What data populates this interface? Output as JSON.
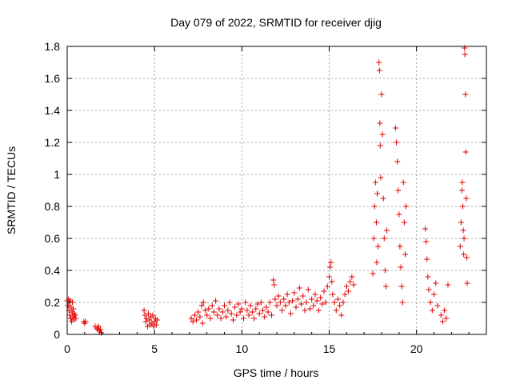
{
  "chart_data": {
    "type": "scatter",
    "title": "Day 079 of 2022, SRMTID for receiver djig",
    "xlabel": "GPS time / hours",
    "ylabel": "SRMTID / TECUs",
    "xlim": [
      0,
      24
    ],
    "ylim": [
      0,
      1.8
    ],
    "xticks": [
      0,
      5,
      10,
      15,
      20
    ],
    "xtick_labels": [
      "0",
      "5",
      "10",
      "15",
      "20"
    ],
    "yticks": [
      0,
      0.2,
      0.4,
      0.6,
      0.8,
      1.0,
      1.2,
      1.4,
      1.6,
      1.8
    ],
    "ytick_labels": [
      "0",
      "0.2",
      "0.4",
      "0.6",
      "0.8",
      "1",
      "1.2",
      "1.4",
      "1.6",
      "1.8"
    ],
    "grid": true,
    "marker": "plus",
    "color": "#e00000",
    "series": [
      {
        "name": "SRMTID",
        "points": [
          [
            0.0,
            0.21
          ],
          [
            0.05,
            0.18
          ],
          [
            0.08,
            0.22
          ],
          [
            0.1,
            0.15
          ],
          [
            0.12,
            0.2
          ],
          [
            0.15,
            0.12
          ],
          [
            0.18,
            0.21
          ],
          [
            0.2,
            0.1
          ],
          [
            0.22,
            0.17
          ],
          [
            0.25,
            0.08
          ],
          [
            0.28,
            0.14
          ],
          [
            0.3,
            0.2
          ],
          [
            0.32,
            0.11
          ],
          [
            0.35,
            0.16
          ],
          [
            0.38,
            0.09
          ],
          [
            0.4,
            0.13
          ],
          [
            0.45,
            0.12
          ],
          [
            0.5,
            0.1
          ],
          [
            0.95,
            0.08
          ],
          [
            1.0,
            0.07
          ],
          [
            1.05,
            0.08
          ],
          [
            1.6,
            0.05
          ],
          [
            1.7,
            0.04
          ],
          [
            1.75,
            0.03
          ],
          [
            1.8,
            0.05
          ],
          [
            1.85,
            0.02
          ],
          [
            1.9,
            0.03
          ],
          [
            1.95,
            0.01
          ],
          [
            4.4,
            0.15
          ],
          [
            4.45,
            0.12
          ],
          [
            4.5,
            0.08
          ],
          [
            4.55,
            0.1
          ],
          [
            4.6,
            0.05
          ],
          [
            4.65,
            0.13
          ],
          [
            4.7,
            0.09
          ],
          [
            4.75,
            0.06
          ],
          [
            4.8,
            0.11
          ],
          [
            4.85,
            0.07
          ],
          [
            4.9,
            0.12
          ],
          [
            4.95,
            0.05
          ],
          [
            5.0,
            0.08
          ],
          [
            5.05,
            0.1
          ],
          [
            5.1,
            0.06
          ],
          [
            5.15,
            0.09
          ],
          [
            7.1,
            0.1
          ],
          [
            7.2,
            0.08
          ],
          [
            7.3,
            0.12
          ],
          [
            7.4,
            0.09
          ],
          [
            7.5,
            0.14
          ],
          [
            7.6,
            0.11
          ],
          [
            7.7,
            0.18
          ],
          [
            7.75,
            0.07
          ],
          [
            7.8,
            0.2
          ],
          [
            7.9,
            0.15
          ],
          [
            8.0,
            0.12
          ],
          [
            8.1,
            0.16
          ],
          [
            8.2,
            0.1
          ],
          [
            8.3,
            0.18
          ],
          [
            8.4,
            0.14
          ],
          [
            8.5,
            0.21
          ],
          [
            8.6,
            0.12
          ],
          [
            8.7,
            0.16
          ],
          [
            8.8,
            0.1
          ],
          [
            8.9,
            0.14
          ],
          [
            9.0,
            0.18
          ],
          [
            9.1,
            0.11
          ],
          [
            9.2,
            0.15
          ],
          [
            9.3,
            0.2
          ],
          [
            9.4,
            0.13
          ],
          [
            9.5,
            0.09
          ],
          [
            9.6,
            0.17
          ],
          [
            9.7,
            0.12
          ],
          [
            9.8,
            0.19
          ],
          [
            9.9,
            0.14
          ],
          [
            10.0,
            0.16
          ],
          [
            10.1,
            0.1
          ],
          [
            10.2,
            0.2
          ],
          [
            10.3,
            0.15
          ],
          [
            10.4,
            0.12
          ],
          [
            10.5,
            0.18
          ],
          [
            10.6,
            0.14
          ],
          [
            10.7,
            0.1
          ],
          [
            10.8,
            0.16
          ],
          [
            10.9,
            0.19
          ],
          [
            11.0,
            0.13
          ],
          [
            11.1,
            0.2
          ],
          [
            11.2,
            0.15
          ],
          [
            11.3,
            0.11
          ],
          [
            11.4,
            0.17
          ],
          [
            11.5,
            0.14
          ],
          [
            11.6,
            0.2
          ],
          [
            11.7,
            0.12
          ],
          [
            11.8,
            0.34
          ],
          [
            11.85,
            0.31
          ],
          [
            11.9,
            0.22
          ],
          [
            12.0,
            0.18
          ],
          [
            12.1,
            0.24
          ],
          [
            12.2,
            0.2
          ],
          [
            12.3,
            0.15
          ],
          [
            12.4,
            0.22
          ],
          [
            12.5,
            0.18
          ],
          [
            12.6,
            0.25
          ],
          [
            12.7,
            0.2
          ],
          [
            12.8,
            0.13
          ],
          [
            12.9,
            0.21
          ],
          [
            13.0,
            0.26
          ],
          [
            13.1,
            0.17
          ],
          [
            13.2,
            0.22
          ],
          [
            13.3,
            0.29
          ],
          [
            13.4,
            0.19
          ],
          [
            13.5,
            0.24
          ],
          [
            13.6,
            0.15
          ],
          [
            13.7,
            0.2
          ],
          [
            13.8,
            0.28
          ],
          [
            13.9,
            0.16
          ],
          [
            14.0,
            0.22
          ],
          [
            14.1,
            0.18
          ],
          [
            14.2,
            0.25
          ],
          [
            14.3,
            0.21
          ],
          [
            14.4,
            0.15
          ],
          [
            14.5,
            0.23
          ],
          [
            14.6,
            0.19
          ],
          [
            14.7,
            0.27
          ],
          [
            14.8,
            0.2
          ],
          [
            14.9,
            0.3
          ],
          [
            15.0,
            0.36
          ],
          [
            15.05,
            0.42
          ],
          [
            15.1,
            0.45
          ],
          [
            15.15,
            0.33
          ],
          [
            15.2,
            0.25
          ],
          [
            15.3,
            0.2
          ],
          [
            15.4,
            0.15
          ],
          [
            15.5,
            0.22
          ],
          [
            15.6,
            0.18
          ],
          [
            15.7,
            0.12
          ],
          [
            15.8,
            0.2
          ],
          [
            15.9,
            0.25
          ],
          [
            16.0,
            0.3
          ],
          [
            16.1,
            0.27
          ],
          [
            16.2,
            0.33
          ],
          [
            16.3,
            0.36
          ],
          [
            16.4,
            0.31
          ],
          [
            17.5,
            0.38
          ],
          [
            17.55,
            0.6
          ],
          [
            17.6,
            0.8
          ],
          [
            17.65,
            0.95
          ],
          [
            17.7,
            0.7
          ],
          [
            17.72,
            0.45
          ],
          [
            17.75,
            0.88
          ],
          [
            17.8,
            0.55
          ],
          [
            17.85,
            1.7
          ],
          [
            17.88,
            1.65
          ],
          [
            17.9,
            1.32
          ],
          [
            17.92,
            1.18
          ],
          [
            17.95,
            0.98
          ],
          [
            18.0,
            1.5
          ],
          [
            18.05,
            1.25
          ],
          [
            18.1,
            0.85
          ],
          [
            18.15,
            0.6
          ],
          [
            18.2,
            0.4
          ],
          [
            18.25,
            0.3
          ],
          [
            18.3,
            0.65
          ],
          [
            18.8,
            1.29
          ],
          [
            18.85,
            1.2
          ],
          [
            18.9,
            1.08
          ],
          [
            18.95,
            0.9
          ],
          [
            19.0,
            0.75
          ],
          [
            19.05,
            0.55
          ],
          [
            19.1,
            0.42
          ],
          [
            19.15,
            0.3
          ],
          [
            19.2,
            0.2
          ],
          [
            19.25,
            0.95
          ],
          [
            19.3,
            0.7
          ],
          [
            19.35,
            0.5
          ],
          [
            19.4,
            0.8
          ],
          [
            20.5,
            0.66
          ],
          [
            20.55,
            0.58
          ],
          [
            20.6,
            0.47
          ],
          [
            20.65,
            0.36
          ],
          [
            20.7,
            0.28
          ],
          [
            20.8,
            0.2
          ],
          [
            20.9,
            0.15
          ],
          [
            21.0,
            0.25
          ],
          [
            21.1,
            0.32
          ],
          [
            21.2,
            0.18
          ],
          [
            21.4,
            0.12
          ],
          [
            21.5,
            0.08
          ],
          [
            21.6,
            0.15
          ],
          [
            21.7,
            0.1
          ],
          [
            21.8,
            0.31
          ],
          [
            22.5,
            0.55
          ],
          [
            22.55,
            0.7
          ],
          [
            22.6,
            0.9
          ],
          [
            22.62,
            0.95
          ],
          [
            22.65,
            0.8
          ],
          [
            22.68,
            0.65
          ],
          [
            22.7,
            0.5
          ],
          [
            22.72,
            0.6
          ],
          [
            22.75,
            1.79
          ],
          [
            22.77,
            1.75
          ],
          [
            22.8,
            1.5
          ],
          [
            22.82,
            1.14
          ],
          [
            22.85,
            0.85
          ],
          [
            22.88,
            0.48
          ],
          [
            22.9,
            0.32
          ]
        ]
      }
    ]
  }
}
